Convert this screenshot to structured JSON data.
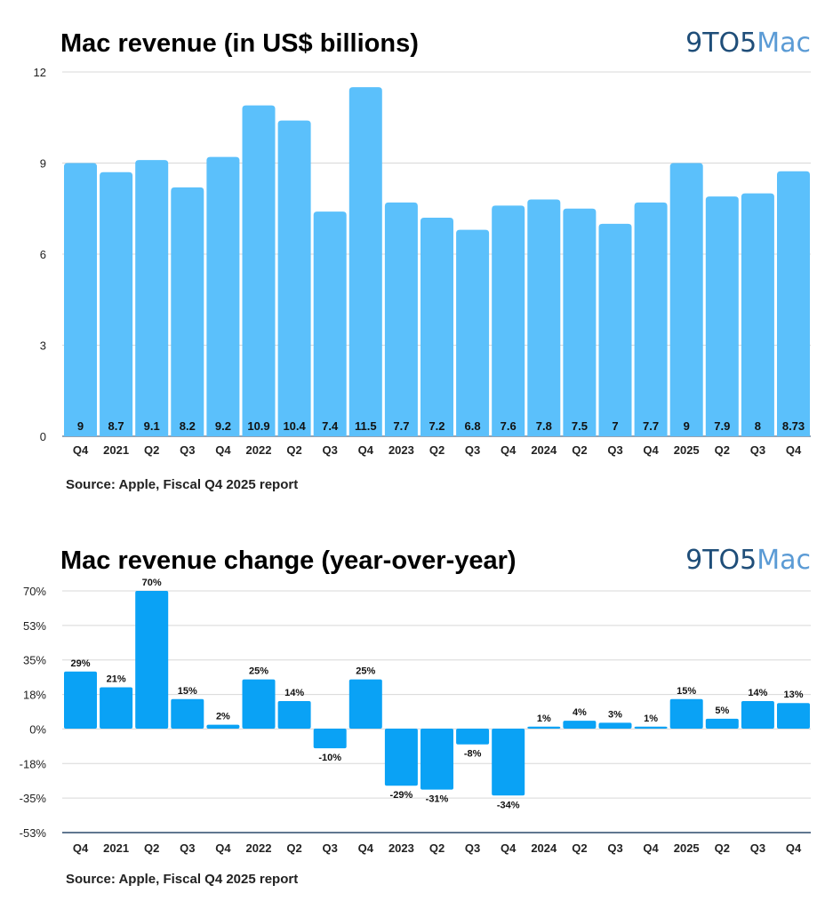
{
  "logo_text": "9TO5Mac",
  "colors": {
    "bar_revenue": "#5bc0fb",
    "bar_change": "#0aa2f5",
    "logo_dark": "#1f4e79",
    "logo_light": "#5b9bd5"
  },
  "chart_data": [
    {
      "type": "bar",
      "title": "Mac revenue (in US$ billions)",
      "source": "Source: Apple, Fiscal Q4 2025 report",
      "categories": [
        "Q4",
        "2021",
        "Q2",
        "Q3",
        "Q4",
        "2022",
        "Q2",
        "Q3",
        "Q4",
        "2023",
        "Q2",
        "Q3",
        "Q4",
        "2024",
        "Q2",
        "Q3",
        "Q4",
        "2025",
        "Q2",
        "Q3",
        "Q4"
      ],
      "values": [
        9,
        8.7,
        9.1,
        8.2,
        9.2,
        10.9,
        10.4,
        7.4,
        11.5,
        7.7,
        7.2,
        6.8,
        7.6,
        7.8,
        7.5,
        7,
        7.7,
        9,
        7.9,
        8,
        8.73
      ],
      "yticks": [
        "0",
        "3",
        "6",
        "9",
        "12"
      ],
      "ylim": [
        0,
        12
      ],
      "grid": true
    },
    {
      "type": "bar",
      "title": "Mac revenue change (year-over-year)",
      "source": "Source: Apple, Fiscal Q4 2025 report",
      "categories": [
        "Q4",
        "2021",
        "Q2",
        "Q3",
        "Q4",
        "2022",
        "Q2",
        "Q3",
        "Q4",
        "2023",
        "Q2",
        "Q3",
        "Q4",
        "2024",
        "Q2",
        "Q3",
        "Q4",
        "2025",
        "Q2",
        "Q3",
        "Q4"
      ],
      "values": [
        29,
        21,
        70,
        15,
        2,
        25,
        14,
        -10,
        25,
        -29,
        -31,
        -8,
        -34,
        1,
        4,
        3,
        1,
        15,
        5,
        14,
        13
      ],
      "labels": [
        "29%",
        "21%",
        "70%",
        "15%",
        "2%",
        "25%",
        "14%",
        "-10%",
        "25%",
        "-29%",
        "-31%",
        "-8%",
        "-34%",
        "1%",
        "4%",
        "3%",
        "1%",
        "15%",
        "5%",
        "14%",
        "13%"
      ],
      "yticks": [
        "70%",
        "53%",
        "35%",
        "18%",
        "0%",
        "-18%",
        "-35%",
        "-53%"
      ],
      "ylim": [
        -52.5,
        70
      ],
      "grid": true
    }
  ]
}
